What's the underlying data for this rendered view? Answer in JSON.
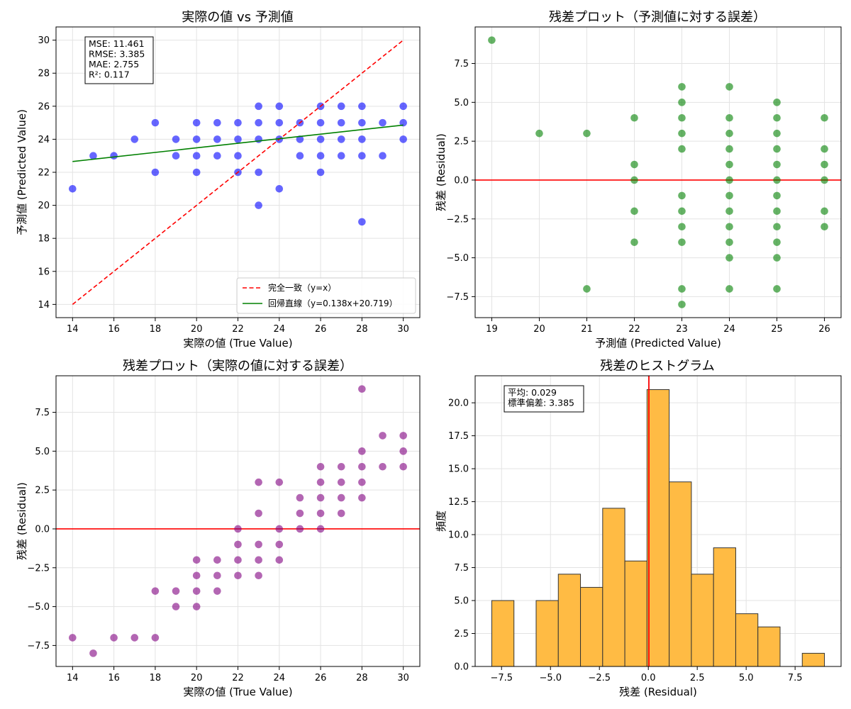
{
  "chart_data": [
    {
      "type": "scatter",
      "title": "実際の値 vs 予測値",
      "xlabel": "実際の値 (True Value)",
      "ylabel": "予測値 (Predicted Value)",
      "xlim": [
        13.2,
        30.8
      ],
      "ylim": [
        13.2,
        30.8
      ],
      "xticks": [
        14,
        16,
        18,
        20,
        22,
        24,
        26,
        28,
        30
      ],
      "yticks": [
        14,
        16,
        18,
        20,
        22,
        24,
        26,
        28,
        30
      ],
      "grid": true,
      "point_color": "#0000ff",
      "stats_box": [
        "MSE: 11.461",
        "RMSE: 3.385",
        "MAE: 2.755",
        "R²: 0.117"
      ],
      "points": [
        [
          14,
          21
        ],
        [
          15,
          23
        ],
        [
          16,
          23
        ],
        [
          17,
          24
        ],
        [
          18,
          25
        ],
        [
          18,
          22
        ],
        [
          19,
          24
        ],
        [
          19,
          23
        ],
        [
          20,
          25
        ],
        [
          20,
          24
        ],
        [
          20,
          23
        ],
        [
          20,
          22
        ],
        [
          21,
          25
        ],
        [
          21,
          24
        ],
        [
          21,
          23
        ],
        [
          22,
          25
        ],
        [
          22,
          24
        ],
        [
          22,
          23
        ],
        [
          22,
          22
        ],
        [
          23,
          26
        ],
        [
          23,
          25
        ],
        [
          23,
          24
        ],
        [
          23,
          22
        ],
        [
          23,
          20
        ],
        [
          24,
          26
        ],
        [
          24,
          25
        ],
        [
          24,
          24
        ],
        [
          24,
          21
        ],
        [
          25,
          25
        ],
        [
          25,
          24
        ],
        [
          25,
          23
        ],
        [
          26,
          26
        ],
        [
          26,
          25
        ],
        [
          26,
          24
        ],
        [
          26,
          23
        ],
        [
          26,
          22
        ],
        [
          27,
          26
        ],
        [
          27,
          25
        ],
        [
          27,
          24
        ],
        [
          27,
          23
        ],
        [
          28,
          26
        ],
        [
          28,
          25
        ],
        [
          28,
          24
        ],
        [
          28,
          23
        ],
        [
          28,
          19
        ],
        [
          29,
          25
        ],
        [
          29,
          23
        ],
        [
          30,
          26
        ],
        [
          30,
          25
        ],
        [
          30,
          24
        ]
      ],
      "lines": [
        {
          "name": "完全一致（y=x）",
          "color": "#ff0000",
          "dash": true,
          "x": [
            14,
            30
          ],
          "y": [
            14,
            30
          ]
        },
        {
          "name": "回帰直線（y=0.138x+20.719）",
          "color": "#008000",
          "dash": false,
          "x": [
            14,
            30
          ],
          "y": [
            22.651,
            24.859
          ]
        }
      ],
      "legend_position": "lower-right"
    },
    {
      "type": "scatter",
      "title": "残差プロット（予測値に対する誤差）",
      "xlabel": "予測値 (Predicted Value)",
      "ylabel": "残差 (Residual)",
      "xlim": [
        18.65,
        26.35
      ],
      "ylim": [
        -8.85,
        9.85
      ],
      "xticks": [
        19,
        20,
        21,
        22,
        23,
        24,
        25,
        26
      ],
      "yticks": [
        -7.5,
        -5.0,
        -2.5,
        0.0,
        2.5,
        5.0,
        7.5
      ],
      "grid": true,
      "point_color": "#008000",
      "hline": {
        "y": 0,
        "color": "#ff0000"
      },
      "points": [
        [
          19,
          9
        ],
        [
          20,
          3
        ],
        [
          21,
          3
        ],
        [
          21,
          -7
        ],
        [
          22,
          4
        ],
        [
          22,
          1
        ],
        [
          22,
          0
        ],
        [
          22,
          -2
        ],
        [
          22,
          -4
        ],
        [
          23,
          6
        ],
        [
          23,
          5
        ],
        [
          23,
          4
        ],
        [
          23,
          3
        ],
        [
          23,
          2
        ],
        [
          23,
          -1
        ],
        [
          23,
          -2
        ],
        [
          23,
          -3
        ],
        [
          23,
          -4
        ],
        [
          23,
          -7
        ],
        [
          23,
          -8
        ],
        [
          24,
          6
        ],
        [
          24,
          4
        ],
        [
          24,
          3
        ],
        [
          24,
          2
        ],
        [
          24,
          1
        ],
        [
          24,
          0
        ],
        [
          24,
          -1
        ],
        [
          24,
          -2
        ],
        [
          24,
          -3
        ],
        [
          24,
          -4
        ],
        [
          24,
          -5
        ],
        [
          24,
          -7
        ],
        [
          25,
          5
        ],
        [
          25,
          4
        ],
        [
          25,
          3
        ],
        [
          25,
          2
        ],
        [
          25,
          1
        ],
        [
          25,
          0
        ],
        [
          25,
          -1
        ],
        [
          25,
          -2
        ],
        [
          25,
          -3
        ],
        [
          25,
          -4
        ],
        [
          25,
          -5
        ],
        [
          25,
          -7
        ],
        [
          26,
          4
        ],
        [
          26,
          2
        ],
        [
          26,
          1
        ],
        [
          26,
          0
        ],
        [
          26,
          -2
        ],
        [
          26,
          -3
        ]
      ]
    },
    {
      "type": "scatter",
      "title": "残差プロット（実際の値に対する誤差）",
      "xlabel": "実際の値 (True Value)",
      "ylabel": "残差 (Residual)",
      "xlim": [
        13.2,
        30.8
      ],
      "ylim": [
        -8.85,
        9.85
      ],
      "xticks": [
        14,
        16,
        18,
        20,
        22,
        24,
        26,
        28,
        30
      ],
      "yticks": [
        -7.5,
        -5.0,
        -2.5,
        0.0,
        2.5,
        5.0,
        7.5
      ],
      "grid": true,
      "point_color": "#800080",
      "hline": {
        "y": 0,
        "color": "#ff0000"
      },
      "points": [
        [
          14,
          -7
        ],
        [
          15,
          -8
        ],
        [
          16,
          -7
        ],
        [
          17,
          -7
        ],
        [
          18,
          -4
        ],
        [
          18,
          -7
        ],
        [
          19,
          -4
        ],
        [
          19,
          -5
        ],
        [
          20,
          -2
        ],
        [
          20,
          -3
        ],
        [
          20,
          -4
        ],
        [
          20,
          -5
        ],
        [
          21,
          -2
        ],
        [
          21,
          -3
        ],
        [
          21,
          -4
        ],
        [
          22,
          0
        ],
        [
          22,
          -1
        ],
        [
          22,
          -2
        ],
        [
          22,
          -3
        ],
        [
          23,
          3
        ],
        [
          23,
          1
        ],
        [
          23,
          -1
        ],
        [
          23,
          -2
        ],
        [
          23,
          -3
        ],
        [
          24,
          3
        ],
        [
          24,
          0
        ],
        [
          24,
          -1
        ],
        [
          24,
          -2
        ],
        [
          25,
          2
        ],
        [
          25,
          1
        ],
        [
          25,
          0
        ],
        [
          26,
          4
        ],
        [
          26,
          3
        ],
        [
          26,
          2
        ],
        [
          26,
          1
        ],
        [
          26,
          0
        ],
        [
          27,
          4
        ],
        [
          27,
          3
        ],
        [
          27,
          2
        ],
        [
          27,
          1
        ],
        [
          28,
          9
        ],
        [
          28,
          5
        ],
        [
          28,
          4
        ],
        [
          28,
          3
        ],
        [
          28,
          2
        ],
        [
          29,
          6
        ],
        [
          29,
          4
        ],
        [
          30,
          6
        ],
        [
          30,
          5
        ],
        [
          30,
          4
        ]
      ]
    },
    {
      "type": "bar",
      "title": "残差のヒストグラム",
      "xlabel": "残差 (Residual)",
      "ylabel": "頻度",
      "xlim": [
        -8.85,
        9.85
      ],
      "ylim": [
        0,
        22.05
      ],
      "xticks": [
        -7.5,
        -5.0,
        -2.5,
        0.0,
        2.5,
        5.0,
        7.5
      ],
      "yticks": [
        0.0,
        2.5,
        5.0,
        7.5,
        10.0,
        12.5,
        15.0,
        17.5,
        20.0
      ],
      "grid": true,
      "bar_color": "#ffbb44",
      "bin_edges": [
        -8.0,
        -6.8667,
        -5.7333,
        -4.6,
        -3.4667,
        -2.3333,
        -1.2,
        -0.0667,
        1.0667,
        2.2,
        3.3333,
        4.4667,
        5.6,
        6.7333,
        7.8667,
        9.0
      ],
      "counts": [
        5,
        0,
        5,
        7,
        6,
        12,
        8,
        21,
        14,
        7,
        9,
        4,
        3,
        0,
        1
      ],
      "vline": {
        "x": 0.029,
        "color": "#ff0000"
      },
      "stats_box": [
        "平均: 0.029",
        "標準偏差: 3.385"
      ]
    }
  ]
}
